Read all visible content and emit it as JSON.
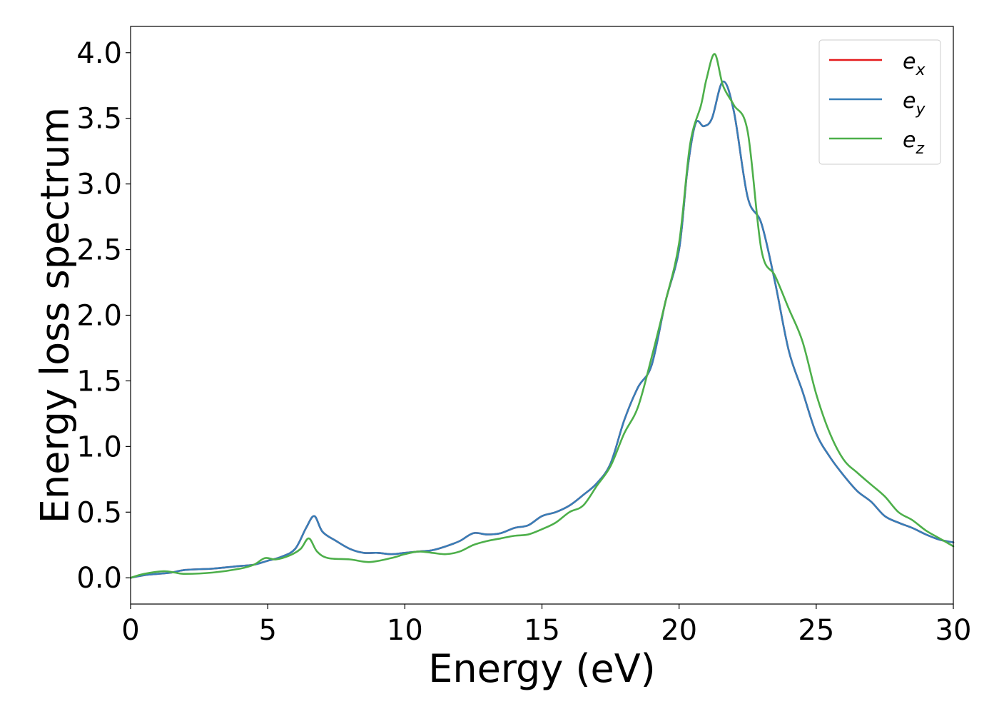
{
  "chart_data": {
    "type": "line",
    "xlabel": "Energy (eV)",
    "ylabel": "Energy loss spectrum",
    "xlim": [
      0,
      30
    ],
    "ylim": [
      -0.2,
      4.2
    ],
    "xticks": [
      0,
      5,
      10,
      15,
      20,
      25,
      30
    ],
    "xtick_labels": [
      "0",
      "5",
      "10",
      "15",
      "20",
      "25",
      "30"
    ],
    "yticks": [
      0.0,
      0.5,
      1.0,
      1.5,
      2.0,
      2.5,
      3.0,
      3.5,
      4.0
    ],
    "ytick_labels": [
      "0.0",
      "0.5",
      "1.0",
      "1.5",
      "2.0",
      "2.5",
      "3.0",
      "3.5",
      "4.0"
    ],
    "grid": false,
    "legend_position": "top-right",
    "series": [
      {
        "name": "e_x",
        "legend_base": "e",
        "legend_sub": "x",
        "color": "#e41a1c",
        "x": [
          0,
          0.5,
          1.0,
          1.5,
          2.0,
          3.0,
          4.0,
          4.5,
          5.0,
          5.5,
          6.0,
          6.4,
          6.7,
          7.0,
          7.5,
          8.0,
          8.5,
          9.0,
          9.5,
          10.0,
          10.5,
          11.0,
          11.5,
          12.0,
          12.5,
          13.0,
          13.5,
          14.0,
          14.5,
          15.0,
          15.5,
          16.0,
          16.5,
          17.0,
          17.5,
          18.0,
          18.5,
          19.0,
          19.5,
          20.0,
          20.3,
          20.6,
          20.9,
          21.2,
          21.6,
          22.0,
          22.5,
          23.0,
          23.5,
          24.0,
          24.5,
          25.0,
          25.5,
          26.0,
          26.5,
          27.0,
          27.5,
          28.0,
          28.5,
          29.0,
          29.5,
          30.0
        ],
        "y": [
          0.0,
          0.02,
          0.03,
          0.04,
          0.06,
          0.07,
          0.09,
          0.1,
          0.13,
          0.16,
          0.22,
          0.38,
          0.47,
          0.35,
          0.28,
          0.22,
          0.19,
          0.19,
          0.18,
          0.19,
          0.2,
          0.21,
          0.24,
          0.28,
          0.34,
          0.33,
          0.34,
          0.38,
          0.4,
          0.47,
          0.5,
          0.55,
          0.63,
          0.72,
          0.87,
          1.2,
          1.45,
          1.62,
          2.1,
          2.5,
          3.1,
          3.46,
          3.44,
          3.5,
          3.78,
          3.55,
          2.9,
          2.7,
          2.25,
          1.73,
          1.42,
          1.1,
          0.92,
          0.78,
          0.66,
          0.58,
          0.47,
          0.42,
          0.38,
          0.33,
          0.29,
          0.27
        ]
      },
      {
        "name": "e_y",
        "legend_base": "e",
        "legend_sub": "y",
        "color": "#377eb8",
        "x": [
          0,
          0.5,
          1.0,
          1.5,
          2.0,
          3.0,
          4.0,
          4.5,
          5.0,
          5.5,
          6.0,
          6.4,
          6.7,
          7.0,
          7.5,
          8.0,
          8.5,
          9.0,
          9.5,
          10.0,
          10.5,
          11.0,
          11.5,
          12.0,
          12.5,
          13.0,
          13.5,
          14.0,
          14.5,
          15.0,
          15.5,
          16.0,
          16.5,
          17.0,
          17.5,
          18.0,
          18.5,
          19.0,
          19.5,
          20.0,
          20.3,
          20.6,
          20.9,
          21.2,
          21.6,
          22.0,
          22.5,
          23.0,
          23.5,
          24.0,
          24.5,
          25.0,
          25.5,
          26.0,
          26.5,
          27.0,
          27.5,
          28.0,
          28.5,
          29.0,
          29.5,
          30.0
        ],
        "y": [
          0.0,
          0.02,
          0.03,
          0.04,
          0.06,
          0.07,
          0.09,
          0.1,
          0.13,
          0.16,
          0.22,
          0.38,
          0.47,
          0.35,
          0.28,
          0.22,
          0.19,
          0.19,
          0.18,
          0.19,
          0.2,
          0.21,
          0.24,
          0.28,
          0.34,
          0.33,
          0.34,
          0.38,
          0.4,
          0.47,
          0.5,
          0.55,
          0.63,
          0.72,
          0.87,
          1.2,
          1.45,
          1.62,
          2.1,
          2.5,
          3.1,
          3.46,
          3.44,
          3.5,
          3.78,
          3.55,
          2.9,
          2.7,
          2.25,
          1.73,
          1.42,
          1.1,
          0.92,
          0.78,
          0.66,
          0.58,
          0.47,
          0.42,
          0.38,
          0.33,
          0.29,
          0.27
        ]
      },
      {
        "name": "e_z",
        "legend_base": "e",
        "legend_sub": "z",
        "color": "#4daf4a",
        "x": [
          0,
          0.5,
          1.2,
          1.6,
          2.0,
          3.0,
          4.0,
          4.5,
          4.9,
          5.3,
          5.8,
          6.2,
          6.5,
          6.8,
          7.2,
          8.0,
          8.7,
          9.5,
          10.0,
          10.5,
          11.0,
          11.5,
          12.0,
          12.5,
          13.0,
          13.5,
          14.0,
          14.5,
          15.0,
          15.5,
          16.0,
          16.5,
          17.0,
          17.5,
          18.0,
          18.5,
          19.0,
          19.5,
          20.0,
          20.4,
          20.8,
          21.0,
          21.3,
          21.6,
          22.0,
          22.5,
          23.0,
          23.5,
          24.0,
          24.5,
          25.0,
          25.5,
          26.0,
          26.5,
          27.0,
          27.5,
          28.0,
          28.5,
          29.0,
          29.5,
          30.0
        ],
        "y": [
          0.0,
          0.03,
          0.05,
          0.04,
          0.03,
          0.04,
          0.07,
          0.1,
          0.15,
          0.14,
          0.17,
          0.22,
          0.3,
          0.2,
          0.15,
          0.14,
          0.12,
          0.15,
          0.18,
          0.2,
          0.19,
          0.18,
          0.2,
          0.25,
          0.28,
          0.3,
          0.32,
          0.33,
          0.37,
          0.42,
          0.5,
          0.55,
          0.7,
          0.85,
          1.1,
          1.3,
          1.68,
          2.1,
          2.55,
          3.3,
          3.6,
          3.8,
          3.99,
          3.75,
          3.6,
          3.4,
          2.5,
          2.3,
          2.05,
          1.8,
          1.4,
          1.1,
          0.9,
          0.8,
          0.71,
          0.62,
          0.5,
          0.44,
          0.36,
          0.3,
          0.24
        ]
      }
    ]
  }
}
